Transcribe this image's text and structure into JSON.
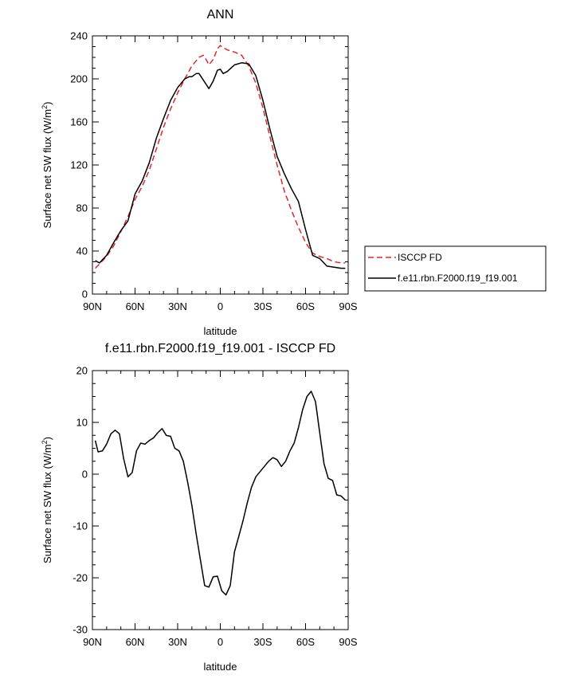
{
  "colors": {
    "obs": "#e2262b",
    "model": "#000000"
  },
  "chart_data": [
    {
      "type": "line",
      "title": "ANN",
      "xlabel": "latitude",
      "ylabel": "Surface net SW flux (W/m",
      "ylabel_sup": "2",
      "ylabel_tail": ")",
      "xlim": [
        90,
        -90
      ],
      "ylim": [
        0,
        240
      ],
      "xticks": [
        90,
        60,
        30,
        0,
        -30,
        -60,
        -90
      ],
      "xtick_labels": [
        "90N",
        "60N",
        "30N",
        "0",
        "30S",
        "60S",
        "90S"
      ],
      "yticks": [
        0,
        40,
        80,
        120,
        160,
        200,
        240
      ],
      "ytick_labels": [
        "0",
        "40",
        "80",
        "120",
        "160",
        "200",
        "240"
      ],
      "legend_position": "right",
      "series": [
        {
          "name": "ISCCP FD",
          "style": "dashed",
          "color": "#e2262b",
          "x": [
            88,
            85,
            80,
            75,
            70,
            65,
            60,
            55,
            50,
            45,
            40,
            35,
            30,
            25,
            20,
            15,
            12,
            10,
            8,
            5,
            2,
            0,
            -2,
            -5,
            -10,
            -15,
            -20,
            -25,
            -30,
            -35,
            -40,
            -45,
            -50,
            -55,
            -60,
            -65,
            -70,
            -75,
            -80,
            -85,
            -88
          ],
          "y": [
            24,
            28,
            35,
            45,
            58,
            72,
            88,
            100,
            115,
            135,
            155,
            172,
            187,
            200,
            212,
            220,
            222,
            218,
            213,
            218,
            228,
            231,
            229,
            227,
            225,
            222,
            212,
            196,
            173,
            146,
            120,
            96,
            78,
            62,
            48,
            38,
            35,
            33,
            30,
            29,
            29
          ]
        },
        {
          "name": "f.e11.rbn.F2000.f19_f19.001",
          "style": "solid",
          "color": "#000000",
          "x": [
            88,
            85,
            80,
            75,
            70,
            65,
            60,
            55,
            50,
            45,
            40,
            35,
            30,
            25,
            22,
            20,
            17,
            15,
            12,
            10,
            8,
            5,
            2,
            0,
            -2,
            -5,
            -10,
            -15,
            -20,
            -25,
            -30,
            -35,
            -40,
            -45,
            -50,
            -55,
            -60,
            -65,
            -70,
            -75,
            -80,
            -85,
            -88
          ],
          "y": [
            31,
            29,
            36,
            48,
            59,
            68,
            93,
            105,
            122,
            145,
            163,
            180,
            192,
            200,
            202,
            202,
            205,
            205,
            199,
            195,
            191,
            198,
            208,
            209,
            205,
            207,
            213,
            215,
            214,
            203,
            180,
            153,
            128,
            112,
            98,
            86,
            60,
            36,
            33,
            26,
            25,
            24,
            24
          ]
        }
      ]
    },
    {
      "type": "line",
      "title": "f.e11.rbn.F2000.f19_f19.001 - ISCCP FD",
      "xlabel": "latitude",
      "ylabel": "Surface net SW flux (W/m",
      "ylabel_sup": "2",
      "ylabel_tail": ")",
      "xlim": [
        90,
        -90
      ],
      "ylim": [
        -30,
        20
      ],
      "xticks": [
        90,
        60,
        30,
        0,
        -30,
        -60,
        -90
      ],
      "xtick_labels": [
        "90N",
        "60N",
        "30N",
        "0",
        "30S",
        "60S",
        "90S"
      ],
      "yticks": [
        -30,
        -20,
        -10,
        0,
        10,
        20
      ],
      "ytick_labels": [
        "-30",
        "-20",
        "-10",
        "0",
        "10",
        "20"
      ],
      "series": [
        {
          "name": "",
          "style": "solid",
          "color": "#000000",
          "x": [
            88,
            86,
            83,
            80,
            77,
            74,
            71,
            68,
            65,
            62,
            59,
            56,
            53,
            50,
            47,
            44,
            41,
            38,
            35,
            32,
            29,
            26,
            23,
            20,
            17,
            14,
            11,
            8,
            5,
            2,
            -1,
            -4,
            -7,
            -10,
            -13,
            -16,
            -19,
            -22,
            -25,
            -28,
            -31,
            -34,
            -37,
            -40,
            -43,
            -46,
            -49,
            -52,
            -55,
            -58,
            -61,
            -64,
            -67,
            -70,
            -73,
            -76,
            -79,
            -82,
            -85,
            -88
          ],
          "y": [
            6.5,
            4.3,
            4.5,
            5.8,
            7.8,
            8.5,
            7.8,
            3,
            -0.5,
            0.3,
            4.5,
            6,
            5.8,
            6.5,
            7,
            8,
            8.8,
            7.5,
            7.3,
            5,
            4.5,
            2.5,
            -1.5,
            -6,
            -11.5,
            -16.5,
            -21.5,
            -21.8,
            -19.8,
            -19.7,
            -22.5,
            -23.3,
            -21.5,
            -15,
            -12,
            -9,
            -5.5,
            -2.5,
            -0.5,
            0.5,
            1.5,
            2.5,
            3.2,
            2.8,
            1.5,
            2.5,
            4.5,
            6,
            9,
            12.5,
            15,
            16,
            14,
            8,
            2,
            -0.8,
            -1.2,
            -4,
            -4.2,
            -5
          ]
        }
      ]
    }
  ]
}
